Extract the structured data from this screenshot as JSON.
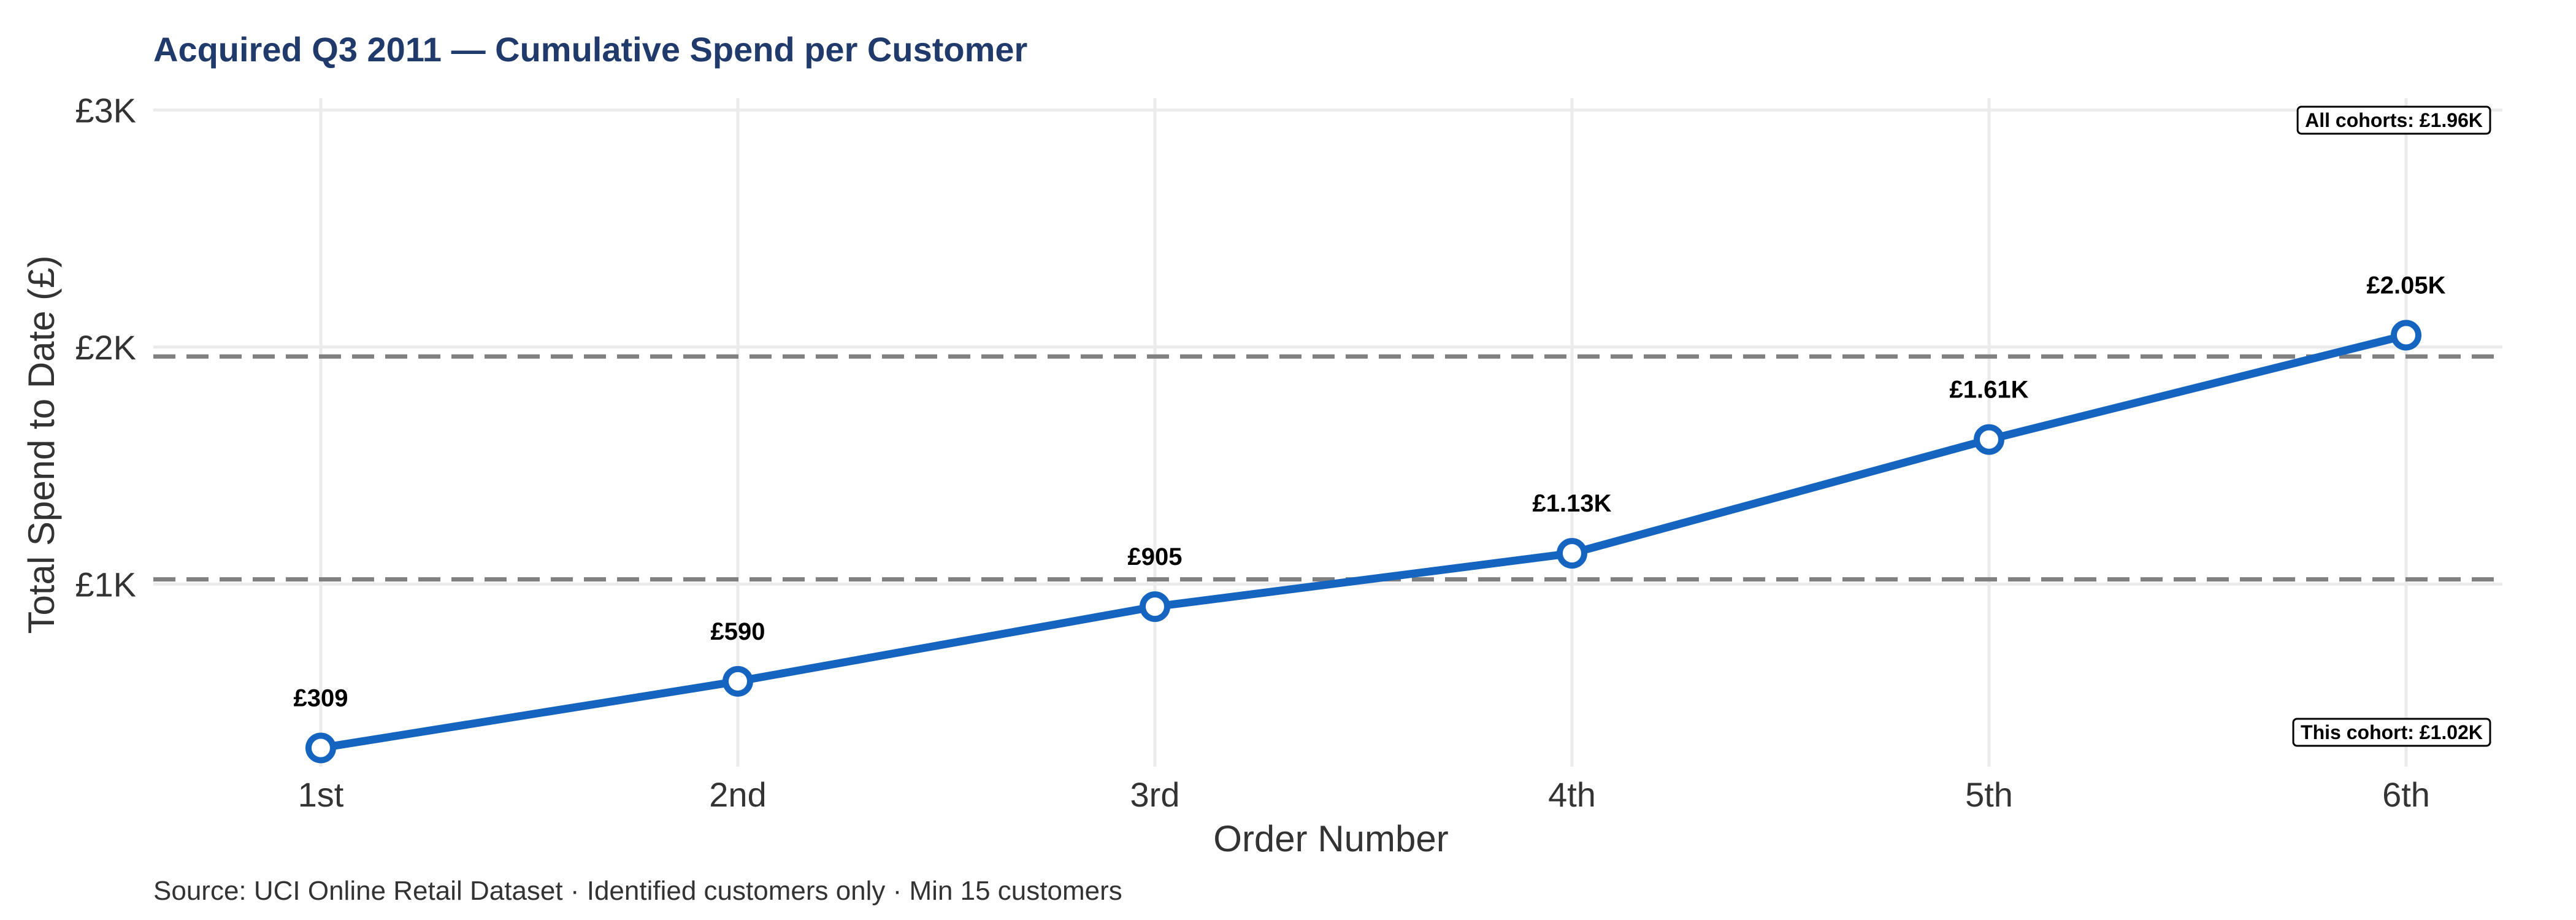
{
  "chart_data": {
    "type": "line",
    "title": "Acquired Q3 2011 — Cumulative Spend per Customer",
    "xlabel": "Order Number",
    "ylabel": "Total Spend to Date (£)",
    "caption": "Source: UCI Online Retail Dataset · Identified customers only · Min 15 customers",
    "categories": [
      "1st",
      "2nd",
      "3rd",
      "4th",
      "5th",
      "6th"
    ],
    "values": [
      309,
      590,
      905,
      1130,
      1610,
      2050
    ],
    "data_labels": [
      "£309",
      "£590",
      "£905",
      "£1.13K",
      "£1.61K",
      "£2.05K"
    ],
    "ylim": [
      230,
      3050
    ],
    "yticks": [
      1000,
      2000,
      3000
    ],
    "ytick_labels": [
      "£1K",
      "£2K",
      "£3K"
    ],
    "reference_lines": [
      {
        "value": 1020,
        "label": "This cohort: £1.02K",
        "label_position": "bottom-right"
      },
      {
        "value": 1960,
        "label": "All cohorts: £1.96K",
        "label_position": "top-right"
      }
    ],
    "grid": true,
    "legend": "none",
    "colors": {
      "line": "#1565c0",
      "marker_fill": "#ffffff",
      "reference": "#808080",
      "title": "#1f3a6b",
      "grid": "#ebebeb"
    }
  }
}
